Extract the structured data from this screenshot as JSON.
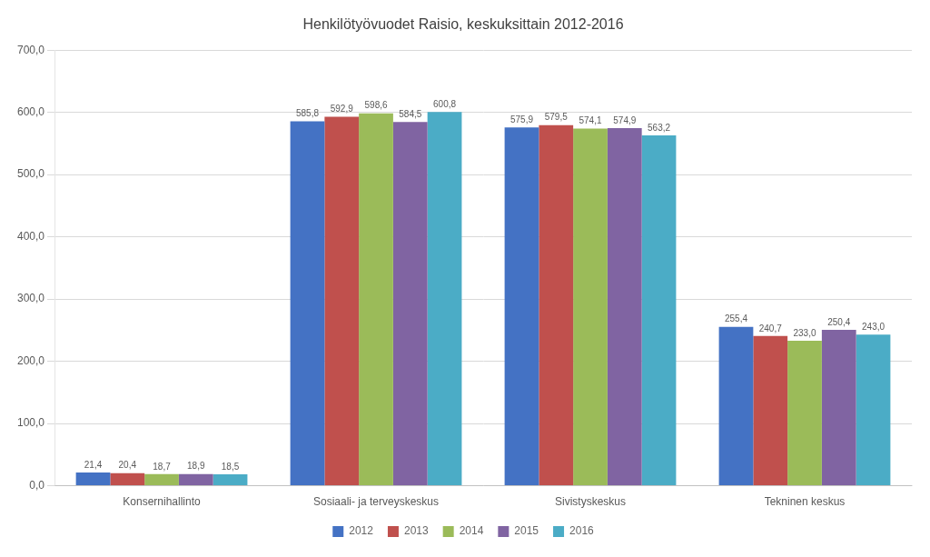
{
  "chart_data": {
    "type": "bar",
    "title": "Henkilötyövuodet Raisio, keskuksittain 2012-2016",
    "categories": [
      "Konsernihallinto",
      "Sosiaali- ja terveyskeskus",
      "Sivistyskeskus",
      "Tekninen keskus"
    ],
    "series": [
      {
        "name": "2012",
        "color": "#4472C4",
        "values": [
          21.4,
          585.8,
          575.9,
          255.4
        ],
        "value_labels": [
          "21,4",
          "585,8",
          "575,9",
          "255,4"
        ]
      },
      {
        "name": "2013",
        "color": "#C0504D",
        "values": [
          20.4,
          592.9,
          579.5,
          240.7
        ],
        "value_labels": [
          "20,4",
          "592,9",
          "579,5",
          "240,7"
        ]
      },
      {
        "name": "2014",
        "color": "#9BBB59",
        "values": [
          18.7,
          598.6,
          574.1,
          233.0
        ],
        "value_labels": [
          "18,7",
          "598,6",
          "574,1",
          "233,0"
        ]
      },
      {
        "name": "2015",
        "color": "#8064A2",
        "values": [
          18.9,
          584.5,
          574.9,
          250.4
        ],
        "value_labels": [
          "18,9",
          "584,5",
          "574,9",
          "250,4"
        ]
      },
      {
        "name": "2016",
        "color": "#4BACC6",
        "values": [
          18.5,
          600.8,
          563.2,
          243.0
        ],
        "value_labels": [
          "18,5",
          "600,8",
          "563,2",
          "243,0"
        ]
      }
    ],
    "ylim": [
      0,
      700
    ],
    "yticks": [
      {
        "value": 0,
        "label": "0,0"
      },
      {
        "value": 100,
        "label": "100,0"
      },
      {
        "value": 200,
        "label": "200,0"
      },
      {
        "value": 300,
        "label": "300,0"
      },
      {
        "value": 400,
        "label": "400,0"
      },
      {
        "value": 500,
        "label": "500,0"
      },
      {
        "value": 600,
        "label": "600,0"
      },
      {
        "value": 700,
        "label": "700,0"
      }
    ],
    "grid": true,
    "legend": "bottom",
    "data_labels": true
  }
}
